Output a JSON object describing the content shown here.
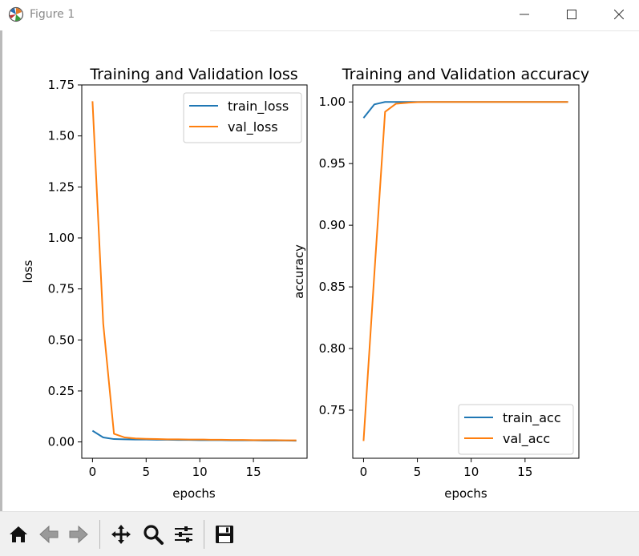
{
  "window": {
    "title": "Figure 1"
  },
  "chart_data": [
    {
      "type": "line",
      "title": "Training and Validation loss",
      "xlabel": "epochs",
      "ylabel": "loss",
      "xlim": [
        -1.0,
        20.0
      ],
      "ylim": [
        -0.08,
        1.75
      ],
      "xticks": [
        0,
        5,
        10,
        15
      ],
      "yticks": [
        0.0,
        0.25,
        0.5,
        0.75,
        1.0,
        1.25,
        1.5,
        1.75
      ],
      "ytick_labels": [
        "0.00",
        "0.25",
        "0.50",
        "0.75",
        "1.00",
        "1.25",
        "1.50",
        "1.75"
      ],
      "legend": "upper right",
      "x": [
        0,
        1,
        2,
        3,
        4,
        5,
        6,
        7,
        8,
        9,
        10,
        11,
        12,
        13,
        14,
        15,
        16,
        17,
        18,
        19
      ],
      "series": [
        {
          "name": "train_loss",
          "color": "#1f77b4",
          "values": [
            0.055,
            0.022,
            0.014,
            0.013,
            0.012,
            0.012,
            0.011,
            0.011,
            0.01,
            0.01,
            0.009,
            0.009,
            0.009,
            0.008,
            0.008,
            0.008,
            0.007,
            0.007,
            0.007,
            0.006
          ]
        },
        {
          "name": "val_loss",
          "color": "#ff7f0e",
          "values": [
            1.67,
            0.58,
            0.04,
            0.022,
            0.017,
            0.015,
            0.014,
            0.013,
            0.013,
            0.012,
            0.012,
            0.011,
            0.011,
            0.01,
            0.01,
            0.009,
            0.009,
            0.009,
            0.008,
            0.008
          ]
        }
      ]
    },
    {
      "type": "line",
      "title": "Training and Validation accuracy",
      "xlabel": "epochs",
      "ylabel": "accuracy",
      "xlim": [
        -1.0,
        20.0
      ],
      "ylim": [
        0.711,
        1.0138
      ],
      "xticks": [
        0,
        5,
        10,
        15
      ],
      "yticks": [
        0.75,
        0.8,
        0.85,
        0.9,
        0.95,
        1.0
      ],
      "ytick_labels": [
        "0.75",
        "0.80",
        "0.85",
        "0.90",
        "0.95",
        "1.00"
      ],
      "legend": "lower right",
      "x": [
        0,
        1,
        2,
        3,
        4,
        5,
        6,
        7,
        8,
        9,
        10,
        11,
        12,
        13,
        14,
        15,
        16,
        17,
        18,
        19
      ],
      "series": [
        {
          "name": "train_acc",
          "color": "#1f77b4",
          "values": [
            0.987,
            0.998,
            1.0,
            1.0,
            1.0,
            1.0,
            1.0,
            1.0,
            1.0,
            1.0,
            1.0,
            1.0,
            1.0,
            1.0,
            1.0,
            1.0,
            1.0,
            1.0,
            1.0,
            1.0
          ]
        },
        {
          "name": "val_acc",
          "color": "#ff7f0e",
          "values": [
            0.725,
            0.86,
            0.992,
            0.9985,
            0.9993,
            0.9998,
            1.0,
            1.0,
            1.0,
            1.0,
            1.0,
            1.0,
            1.0,
            1.0,
            1.0,
            1.0,
            1.0,
            1.0,
            1.0,
            1.0
          ]
        }
      ]
    }
  ],
  "toolbar": {
    "buttons": [
      "home-icon",
      "back-icon",
      "forward-icon",
      "pan-icon",
      "zoom-icon",
      "configure-subplots-icon",
      "save-icon"
    ]
  }
}
